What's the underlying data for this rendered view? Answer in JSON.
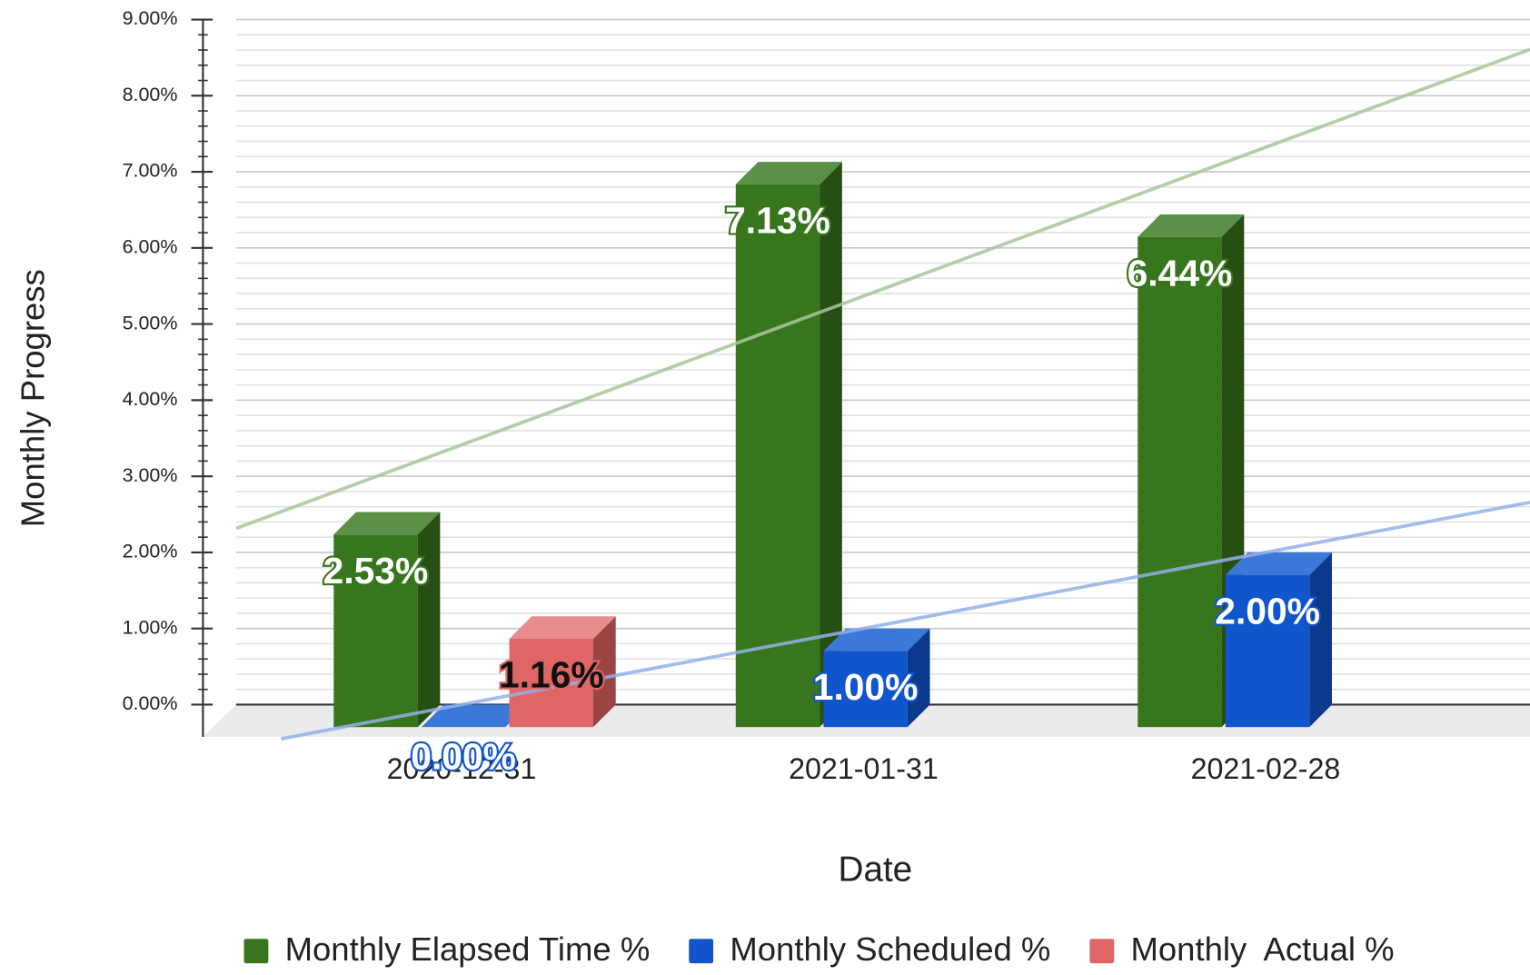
{
  "chart_data": {
    "type": "bar3d",
    "x_label": "Date",
    "y_label": "Monthly Progress",
    "categories": [
      "2020-12-31",
      "2021-01-31",
      "2021-02-28"
    ],
    "series": [
      {
        "name": "Monthly Elapsed Time %",
        "color": "#38761d",
        "side_color": "#274e13",
        "top_color": "#5c8f47",
        "trend_color": "#a9c59b",
        "label_color": "#ffffff",
        "values": [
          2.53,
          7.13,
          6.44
        ],
        "value_labels": [
          "2.53%",
          "7.13%",
          "6.44%"
        ]
      },
      {
        "name": "Monthly Scheduled %",
        "color": "#1155cc",
        "side_color": "#0b3a8c",
        "top_color": "#3c78d8",
        "trend_color": "#93b1e8",
        "label_color": "#ffffff",
        "values": [
          0.0,
          1.0,
          2.0
        ],
        "value_labels": [
          "0.00%",
          "1.00%",
          "2.00%"
        ]
      },
      {
        "name": "Monthly  Actual %",
        "color": "#e06666",
        "side_color": "#9c4343",
        "top_color": "#e88d8d",
        "trend_color": "#eeaaaa",
        "label_color": "#111111",
        "values": [
          1.16,
          null,
          null
        ],
        "value_labels": [
          "1.16%",
          null,
          null
        ]
      }
    ],
    "ylim": [
      0,
      9
    ],
    "yticks": [
      {
        "value": 0,
        "label": "0.00%"
      },
      {
        "value": 1,
        "label": "1.00%"
      },
      {
        "value": 2,
        "label": "2.00%"
      },
      {
        "value": 3,
        "label": "3.00%"
      },
      {
        "value": 4,
        "label": "4.00%"
      },
      {
        "value": 5,
        "label": "5.00%"
      },
      {
        "value": 6,
        "label": "6.00%"
      },
      {
        "value": 7,
        "label": "7.00%"
      },
      {
        "value": 8,
        "label": "8.00%"
      },
      {
        "value": 9,
        "label": "9.00%"
      }
    ],
    "minor_ticks_per_major": 5,
    "grid": true,
    "trendlines": "linear",
    "legend": "bottom"
  }
}
